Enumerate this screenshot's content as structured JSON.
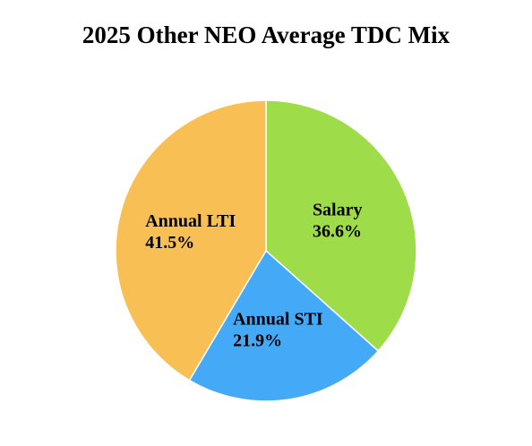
{
  "chart_data": {
    "type": "pie",
    "title": "2025 Other NEO Average TDC Mix",
    "slices": [
      {
        "label": "Salary",
        "value": 36.6,
        "value_label": "36.6%",
        "color": "#9EDC4A"
      },
      {
        "label": "Annual STI",
        "value": 21.9,
        "value_label": "21.9%",
        "color": "#44AAF8"
      },
      {
        "label": "Annual LTI",
        "value": 41.5,
        "value_label": "41.5%",
        "color": "#F8C054"
      }
    ],
    "start_angle_deg": 0,
    "direction": "clockwise",
    "legend": "none",
    "labels_inside": true
  }
}
